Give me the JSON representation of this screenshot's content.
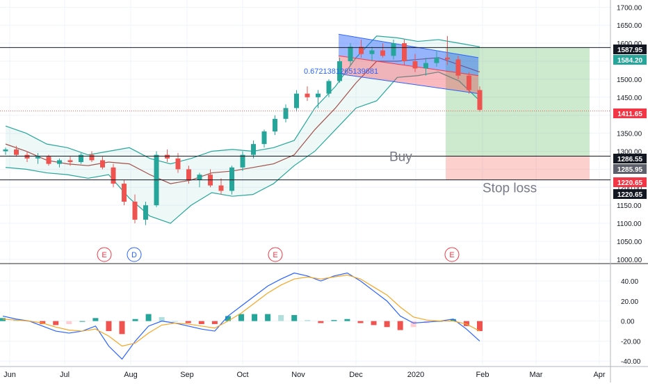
{
  "chart_data": [
    {
      "type": "candlestick",
      "panel": "price",
      "x_ticks": [
        "Jun",
        "Jul",
        "Aug",
        "Sep",
        "Oct",
        "Nov",
        "Dec",
        "2020",
        "Feb",
        "Mar",
        "Apr"
      ],
      "y_ticks": [
        1000,
        1050,
        1100,
        1150,
        1200,
        1250,
        1300,
        1350,
        1400,
        1450,
        1500,
        1550,
        1600,
        1650,
        1700
      ],
      "ylim": [
        990,
        1720
      ],
      "price_labels": [
        {
          "text": "1587.95",
          "value": 1587.95,
          "style": "dark"
        },
        {
          "text": "1584.20",
          "value": 1584.2,
          "style": "green"
        },
        {
          "text": "1411.65",
          "value": 1411.65,
          "style": "red"
        },
        {
          "text": "1286.55",
          "value": 1286.55,
          "style": "dark"
        },
        {
          "text": "1285.95",
          "value": 1285.95,
          "style": "gray"
        },
        {
          "text": "1220.65",
          "value": 1220.65,
          "style": "red"
        },
        {
          "text": "1220.65",
          "value": 1220.65,
          "style": "dark"
        }
      ],
      "horizontal_lines": [
        1587.95,
        1286.55,
        1220.65
      ],
      "current_price_line": 1411.65,
      "annotations": [
        {
          "text": "Buy",
          "at_value": 1286.55
        },
        {
          "text": "Stop loss",
          "at_value": 1220.65
        },
        {
          "text": "0.6721381265139681",
          "at_value": 1515
        }
      ],
      "event_markers": [
        "E",
        "D",
        "E",
        "E"
      ],
      "bollinger": {
        "upper": [
          1370,
          1350,
          1320,
          1310,
          1290,
          1300,
          1310,
          1280,
          1265,
          1280,
          1300,
          1305,
          1300,
          1310,
          1330,
          1420,
          1480,
          1560,
          1620,
          1615,
          1605,
          1610,
          1600,
          1590
        ],
        "middle": [
          1320,
          1300,
          1275,
          1265,
          1260,
          1270,
          1265,
          1235,
          1210,
          1220,
          1240,
          1245,
          1255,
          1265,
          1290,
          1360,
          1420,
          1490,
          1550,
          1550,
          1555,
          1560,
          1540,
          1520
        ],
        "lower": [
          1255,
          1250,
          1240,
          1235,
          1225,
          1235,
          1170,
          1120,
          1100,
          1150,
          1185,
          1175,
          1180,
          1210,
          1260,
          1300,
          1360,
          1420,
          1440,
          1505,
          1510,
          1520,
          1495,
          1440
        ]
      },
      "candles": [
        [
          1300,
          1310,
          1290,
          1305
        ],
        [
          1305,
          1315,
          1285,
          1290
        ],
        [
          1290,
          1300,
          1270,
          1280
        ],
        [
          1280,
          1295,
          1265,
          1285
        ],
        [
          1285,
          1290,
          1260,
          1265
        ],
        [
          1265,
          1280,
          1255,
          1275
        ],
        [
          1275,
          1285,
          1260,
          1270
        ],
        [
          1270,
          1295,
          1265,
          1290
        ],
        [
          1290,
          1300,
          1270,
          1275
        ],
        [
          1275,
          1285,
          1250,
          1255
        ],
        [
          1255,
          1265,
          1200,
          1210
        ],
        [
          1210,
          1220,
          1150,
          1160
        ],
        [
          1160,
          1180,
          1100,
          1110
        ],
        [
          1110,
          1160,
          1095,
          1150
        ],
        [
          1150,
          1300,
          1145,
          1290
        ],
        [
          1290,
          1305,
          1270,
          1280
        ],
        [
          1280,
          1295,
          1240,
          1250
        ],
        [
          1250,
          1260,
          1210,
          1220
        ],
        [
          1220,
          1240,
          1200,
          1235
        ],
        [
          1235,
          1250,
          1200,
          1205
        ],
        [
          1205,
          1225,
          1180,
          1190
        ],
        [
          1190,
          1260,
          1180,
          1255
        ],
        [
          1255,
          1300,
          1245,
          1290
        ],
        [
          1290,
          1330,
          1280,
          1320
        ],
        [
          1320,
          1360,
          1310,
          1355
        ],
        [
          1355,
          1400,
          1345,
          1390
        ],
        [
          1390,
          1430,
          1380,
          1420
        ],
        [
          1420,
          1470,
          1410,
          1460
        ],
        [
          1460,
          1480,
          1440,
          1450
        ],
        [
          1450,
          1470,
          1420,
          1460
        ],
        [
          1460,
          1500,
          1450,
          1495
        ],
        [
          1495,
          1560,
          1490,
          1550
        ],
        [
          1550,
          1600,
          1540,
          1590
        ],
        [
          1590,
          1610,
          1560,
          1570
        ],
        [
          1570,
          1590,
          1550,
          1580
        ],
        [
          1580,
          1600,
          1560,
          1565
        ],
        [
          1565,
          1610,
          1555,
          1600
        ],
        [
          1600,
          1610,
          1540,
          1550
        ],
        [
          1550,
          1570,
          1520,
          1530
        ],
        [
          1530,
          1560,
          1510,
          1545
        ],
        [
          1545,
          1580,
          1535,
          1560
        ],
        [
          1560,
          1620,
          1540,
          1555
        ],
        [
          1555,
          1565,
          1500,
          1510
        ],
        [
          1510,
          1520,
          1460,
          1470
        ],
        [
          1470,
          1480,
          1410,
          1415
        ]
      ]
    },
    {
      "type": "line",
      "panel": "macd",
      "y_ticks": [
        40,
        20,
        0,
        -20,
        -40
      ],
      "ylim": [
        -44,
        56
      ],
      "series": [
        {
          "role": "macd",
          "color": "#2962ff",
          "values": [
            5,
            2,
            0,
            -5,
            -10,
            -12,
            -10,
            -5,
            -25,
            -38,
            -20,
            -5,
            0,
            -2,
            -5,
            -8,
            -10,
            5,
            15,
            25,
            35,
            42,
            48,
            45,
            40,
            45,
            48,
            40,
            30,
            20,
            5,
            -2,
            -1,
            0,
            2,
            -8,
            -20
          ]
        },
        {
          "role": "signal",
          "color": "#f5a623",
          "values": [
            2,
            1,
            0,
            -2,
            -6,
            -9,
            -10,
            -8,
            -15,
            -25,
            -22,
            -12,
            -4,
            -2,
            -3,
            -5,
            -7,
            0,
            8,
            18,
            28,
            36,
            42,
            44,
            42,
            44,
            46,
            42,
            34,
            26,
            14,
            4,
            1,
            0,
            0,
            -3,
            -10
          ]
        }
      ],
      "histogram": [
        3,
        1,
        0,
        -3,
        -4,
        -3,
        0,
        3,
        -10,
        -13,
        2,
        7,
        4,
        0,
        -2,
        -3,
        -3,
        5,
        7,
        7,
        7,
        6,
        6,
        1,
        -2,
        1,
        2,
        -2,
        -4,
        -6,
        -9,
        -6,
        -2,
        0,
        2,
        -5,
        -10
      ]
    }
  ]
}
